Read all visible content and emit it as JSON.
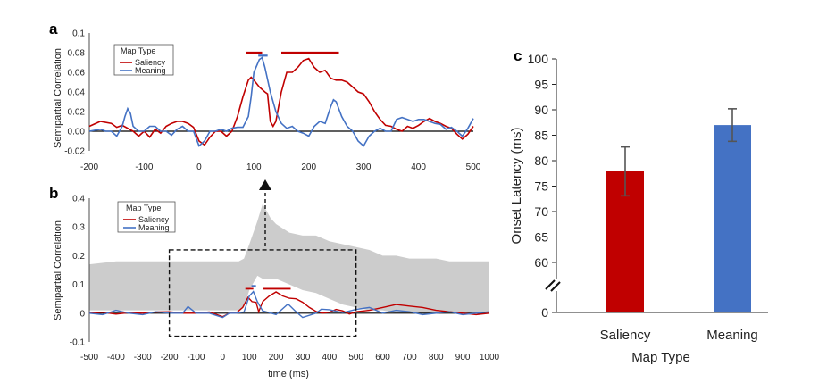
{
  "panels": {
    "a": {
      "letter": "a",
      "ylabel": "Semipartial Correlation",
      "legend_title": "Map Type",
      "yticks": [
        "0.1",
        "0.08",
        "0.06",
        "0.04",
        "0.02",
        "0.00",
        "-0.02"
      ],
      "xticks": [
        "-200",
        "-100",
        "0",
        "100",
        "200",
        "300",
        "400",
        "500"
      ]
    },
    "b": {
      "letter": "b",
      "ylabel": "Semipartial Correlation",
      "xlabel": "time (ms)",
      "legend_title": "Map Type",
      "yticks": [
        "0.4",
        "0.3",
        "0.2",
        "0.1",
        "0",
        "-0.1"
      ],
      "xticks": [
        "-500",
        "-400",
        "-300",
        "-200",
        "-100",
        "0",
        "100",
        "200",
        "300",
        "400",
        "500",
        "600",
        "700",
        "800",
        "900",
        "1000"
      ]
    },
    "c": {
      "letter": "c",
      "ylabel": "Onset Latency (ms)",
      "xlabel": "Map Type",
      "yticks": [
        "100",
        "95",
        "90",
        "85",
        "80",
        "75",
        "70",
        "65",
        "60",
        "0"
      ],
      "break_mark": "//"
    }
  },
  "chart_data": [
    {
      "type": "line",
      "panel": "a",
      "xlim": [
        -200,
        500
      ],
      "ylim": [
        -0.02,
        0.1
      ],
      "series": [
        {
          "name": "Saliency",
          "color": "#c00000",
          "points": [
            [
              -200,
              0.005
            ],
            [
              -180,
              0.01
            ],
            [
              -160,
              0.008
            ],
            [
              -150,
              0.004
            ],
            [
              -140,
              0.006
            ],
            [
              -120,
              0.0
            ],
            [
              -110,
              -0.005
            ],
            [
              -100,
              0.0
            ],
            [
              -90,
              -0.006
            ],
            [
              -80,
              0.002
            ],
            [
              -70,
              -0.002
            ],
            [
              -60,
              0.005
            ],
            [
              -50,
              0.008
            ],
            [
              -40,
              0.01
            ],
            [
              -30,
              0.01
            ],
            [
              -20,
              0.008
            ],
            [
              -10,
              0.004
            ],
            [
              0,
              -0.01
            ],
            [
              10,
              -0.014
            ],
            [
              20,
              -0.006
            ],
            [
              30,
              0.0
            ],
            [
              40,
              0.0
            ],
            [
              50,
              -0.005
            ],
            [
              60,
              0.0
            ],
            [
              70,
              0.015
            ],
            [
              80,
              0.035
            ],
            [
              90,
              0.052
            ],
            [
              95,
              0.055
            ],
            [
              100,
              0.052
            ],
            [
              110,
              0.045
            ],
            [
              120,
              0.04
            ],
            [
              125,
              0.038
            ],
            [
              130,
              0.01
            ],
            [
              135,
              0.005
            ],
            [
              140,
              0.01
            ],
            [
              150,
              0.04
            ],
            [
              160,
              0.06
            ],
            [
              170,
              0.06
            ],
            [
              180,
              0.065
            ],
            [
              190,
              0.072
            ],
            [
              200,
              0.074
            ],
            [
              210,
              0.065
            ],
            [
              220,
              0.06
            ],
            [
              230,
              0.062
            ],
            [
              240,
              0.054
            ],
            [
              250,
              0.052
            ],
            [
              260,
              0.052
            ],
            [
              270,
              0.05
            ],
            [
              280,
              0.045
            ],
            [
              290,
              0.04
            ],
            [
              300,
              0.038
            ],
            [
              310,
              0.03
            ],
            [
              320,
              0.02
            ],
            [
              330,
              0.012
            ],
            [
              340,
              0.006
            ],
            [
              350,
              0.005
            ],
            [
              360,
              0.002
            ],
            [
              370,
              0.0
            ],
            [
              380,
              0.005
            ],
            [
              390,
              0.003
            ],
            [
              400,
              0.006
            ],
            [
              410,
              0.01
            ],
            [
              420,
              0.013
            ],
            [
              430,
              0.01
            ],
            [
              440,
              0.008
            ],
            [
              450,
              0.005
            ],
            [
              460,
              0.003
            ],
            [
              470,
              -0.003
            ],
            [
              480,
              -0.008
            ],
            [
              490,
              -0.003
            ],
            [
              500,
              0.005
            ]
          ]
        },
        {
          "name": "Meaning",
          "color": "#4472c4",
          "points": [
            [
              -200,
              0.0
            ],
            [
              -180,
              0.002
            ],
            [
              -170,
              0.0
            ],
            [
              -160,
              0.0
            ],
            [
              -150,
              -0.005
            ],
            [
              -140,
              0.005
            ],
            [
              -135,
              0.015
            ],
            [
              -130,
              0.023
            ],
            [
              -125,
              0.018
            ],
            [
              -120,
              0.005
            ],
            [
              -110,
              0.0
            ],
            [
              -100,
              0.0
            ],
            [
              -90,
              0.005
            ],
            [
              -80,
              0.005
            ],
            [
              -70,
              0.0
            ],
            [
              -60,
              0.0
            ],
            [
              -50,
              -0.004
            ],
            [
              -40,
              0.002
            ],
            [
              -30,
              0.005
            ],
            [
              -20,
              0.0
            ],
            [
              -10,
              0.0
            ],
            [
              0,
              -0.015
            ],
            [
              10,
              -0.01
            ],
            [
              20,
              0.0
            ],
            [
              30,
              0.0
            ],
            [
              40,
              0.002
            ],
            [
              50,
              0.0
            ],
            [
              60,
              0.003
            ],
            [
              70,
              0.004
            ],
            [
              80,
              0.004
            ],
            [
              90,
              0.015
            ],
            [
              95,
              0.035
            ],
            [
              100,
              0.06
            ],
            [
              110,
              0.073
            ],
            [
              115,
              0.075
            ],
            [
              120,
              0.065
            ],
            [
              130,
              0.04
            ],
            [
              140,
              0.02
            ],
            [
              150,
              0.008
            ],
            [
              160,
              0.003
            ],
            [
              170,
              0.005
            ],
            [
              180,
              0.0
            ],
            [
              190,
              -0.002
            ],
            [
              200,
              -0.005
            ],
            [
              210,
              0.005
            ],
            [
              220,
              0.01
            ],
            [
              230,
              0.008
            ],
            [
              240,
              0.025
            ],
            [
              245,
              0.032
            ],
            [
              250,
              0.03
            ],
            [
              260,
              0.015
            ],
            [
              270,
              0.005
            ],
            [
              280,
              0.0
            ],
            [
              290,
              -0.01
            ],
            [
              300,
              -0.015
            ],
            [
              310,
              -0.005
            ],
            [
              320,
              0.0
            ],
            [
              330,
              0.003
            ],
            [
              340,
              0.0
            ],
            [
              350,
              0.0
            ],
            [
              360,
              0.012
            ],
            [
              370,
              0.014
            ],
            [
              380,
              0.012
            ],
            [
              390,
              0.01
            ],
            [
              400,
              0.012
            ],
            [
              410,
              0.012
            ],
            [
              420,
              0.01
            ],
            [
              430,
              0.008
            ],
            [
              440,
              0.007
            ],
            [
              450,
              0.002
            ],
            [
              460,
              0.004
            ],
            [
              470,
              0.0
            ],
            [
              480,
              -0.005
            ],
            [
              490,
              0.003
            ],
            [
              500,
              0.013
            ]
          ]
        }
      ],
      "significance_bars": [
        {
          "series": "Saliency",
          "from": 85,
          "to": 115,
          "y": 0.08
        },
        {
          "series": "Saliency",
          "from": 150,
          "to": 255,
          "y": 0.08
        },
        {
          "series": "Meaning",
          "from": 108,
          "to": 125,
          "y": 0.077
        }
      ]
    },
    {
      "type": "line",
      "panel": "b",
      "xlim": [
        -500,
        1000
      ],
      "ylim": [
        -0.1,
        0.4
      ],
      "noise_ceiling_band": {
        "color": "#cccccc",
        "x": [
          -500,
          -400,
          -300,
          -200,
          -100,
          0,
          60,
          80,
          100,
          130,
          150,
          180,
          200,
          250,
          300,
          350,
          400,
          450,
          500,
          550,
          600,
          650,
          700,
          750,
          800,
          850,
          900,
          950,
          1000
        ],
        "lower": [
          0.01,
          0.01,
          0.01,
          0.01,
          0.01,
          0.01,
          0.01,
          0.02,
          0.08,
          0.13,
          0.12,
          0.12,
          0.12,
          0.1,
          0.08,
          0.07,
          0.05,
          0.03,
          0.02,
          0.01,
          0.01,
          0.0,
          0.0,
          0.0,
          0.0,
          0.0,
          0.0,
          0.0,
          0.0
        ],
        "upper": [
          0.17,
          0.18,
          0.18,
          0.18,
          0.18,
          0.18,
          0.18,
          0.19,
          0.24,
          0.32,
          0.38,
          0.33,
          0.31,
          0.28,
          0.27,
          0.27,
          0.25,
          0.24,
          0.23,
          0.22,
          0.2,
          0.2,
          0.19,
          0.19,
          0.19,
          0.18,
          0.18,
          0.18,
          0.18
        ]
      },
      "series": [
        {
          "name": "Saliency",
          "color": "#c00000",
          "points": [
            [
              -500,
              0.0
            ],
            [
              -450,
              0.003
            ],
            [
              -400,
              -0.003
            ],
            [
              -350,
              0.002
            ],
            [
              -300,
              0.0
            ],
            [
              -250,
              0.004
            ],
            [
              -200,
              0.005
            ],
            [
              -150,
              0.0
            ],
            [
              -100,
              0.0
            ],
            [
              -50,
              0.004
            ],
            [
              0,
              -0.012
            ],
            [
              25,
              0.0
            ],
            [
              50,
              0.0
            ],
            [
              75,
              0.02
            ],
            [
              95,
              0.055
            ],
            [
              110,
              0.04
            ],
            [
              125,
              0.038
            ],
            [
              135,
              0.005
            ],
            [
              150,
              0.04
            ],
            [
              175,
              0.06
            ],
            [
              200,
              0.074
            ],
            [
              225,
              0.06
            ],
            [
              250,
              0.052
            ],
            [
              275,
              0.05
            ],
            [
              300,
              0.038
            ],
            [
              325,
              0.02
            ],
            [
              350,
              0.006
            ],
            [
              375,
              0.0
            ],
            [
              400,
              0.003
            ],
            [
              425,
              0.013
            ],
            [
              450,
              0.008
            ],
            [
              475,
              -0.003
            ],
            [
              500,
              0.005
            ],
            [
              550,
              0.01
            ],
            [
              600,
              0.02
            ],
            [
              650,
              0.03
            ],
            [
              700,
              0.025
            ],
            [
              750,
              0.02
            ],
            [
              800,
              0.01
            ],
            [
              850,
              0.005
            ],
            [
              900,
              0.0
            ],
            [
              950,
              -0.005
            ],
            [
              1000,
              0.0
            ]
          ]
        },
        {
          "name": "Meaning",
          "color": "#4472c4",
          "points": [
            [
              -500,
              0.0
            ],
            [
              -450,
              -0.005
            ],
            [
              -400,
              0.01
            ],
            [
              -350,
              0.0
            ],
            [
              -300,
              -0.005
            ],
            [
              -250,
              0.005
            ],
            [
              -200,
              0.0
            ],
            [
              -150,
              0.0
            ],
            [
              -130,
              0.023
            ],
            [
              -100,
              0.0
            ],
            [
              -50,
              0.0
            ],
            [
              0,
              -0.015
            ],
            [
              25,
              0.0
            ],
            [
              50,
              0.0
            ],
            [
              80,
              0.004
            ],
            [
              100,
              0.06
            ],
            [
              115,
              0.075
            ],
            [
              130,
              0.04
            ],
            [
              150,
              0.008
            ],
            [
              200,
              -0.005
            ],
            [
              245,
              0.032
            ],
            [
              275,
              0.005
            ],
            [
              300,
              -0.015
            ],
            [
              350,
              0.0
            ],
            [
              370,
              0.014
            ],
            [
              400,
              0.012
            ],
            [
              450,
              0.002
            ],
            [
              500,
              0.013
            ],
            [
              550,
              0.02
            ],
            [
              600,
              0.0
            ],
            [
              650,
              0.01
            ],
            [
              700,
              0.005
            ],
            [
              750,
              -0.005
            ],
            [
              800,
              0.0
            ],
            [
              850,
              0.005
            ],
            [
              900,
              -0.005
            ],
            [
              950,
              0.0
            ],
            [
              1000,
              0.005
            ]
          ]
        }
      ],
      "zoom_box": {
        "x": [
          -200,
          500
        ],
        "y": [
          -0.08,
          0.22
        ]
      }
    },
    {
      "type": "bar",
      "panel": "c",
      "categories": [
        "Saliency",
        "Meaning"
      ],
      "values": [
        77.9,
        87.0
      ],
      "errors": [
        4.8,
        3.2
      ],
      "colors": [
        "#c00000",
        "#4472c4"
      ],
      "ylim": [
        55,
        100
      ],
      "xlabel": "Map Type",
      "ylabel": "Onset Latency (ms)"
    }
  ]
}
